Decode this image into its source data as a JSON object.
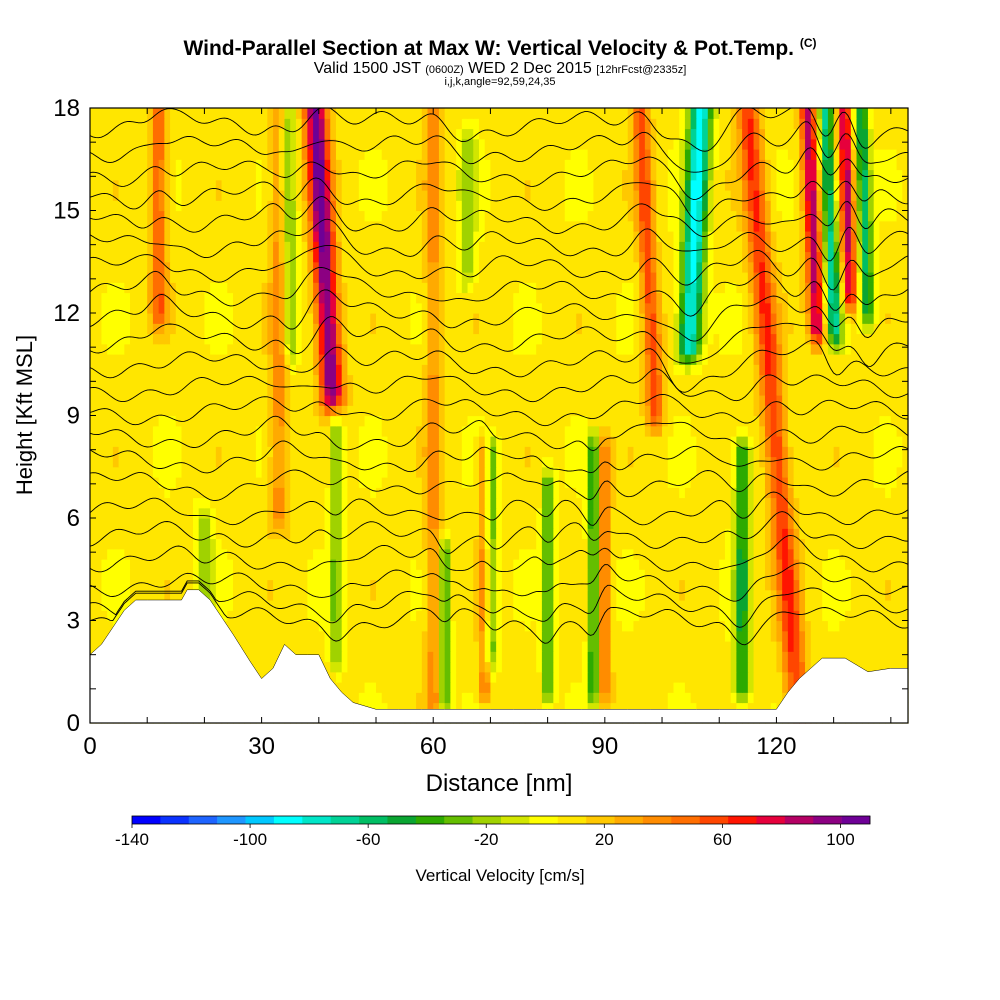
{
  "title": {
    "main": "Wind-Parallel Section at Max W: Vertical Velocity & Pot.Temp.",
    "copyright": "(C)",
    "valid_prefix": "Valid 1500 JST",
    "valid_utc": "(0600Z)",
    "valid_date": "WED 2 Dec 2015",
    "forecast": "[12hrFcst@2335z]",
    "indices": "i,j,k,angle=92,59,24,35"
  },
  "chart_data": {
    "type": "heatmap",
    "title": "Wind-Parallel Section at Max W: Vertical Velocity & Pot.Temp.",
    "xlabel": "Distance [nm]",
    "ylabel": "Height [Kft MSL]",
    "xlim": [
      0,
      143
    ],
    "ylim": [
      0,
      18
    ],
    "x_ticks": [
      "0",
      "30",
      "60",
      "90",
      "120"
    ],
    "y_ticks": [
      "0",
      "3",
      "6",
      "9",
      "12",
      "15",
      "18"
    ],
    "colorbar": {
      "label": "Vertical Velocity [cm/s]",
      "tick_labels": [
        "-140",
        "-100",
        "-60",
        "-20",
        "20",
        "60",
        "100"
      ],
      "range": [
        -140,
        110
      ],
      "colors": [
        "#0000ff",
        "#0a32ff",
        "#1e64ff",
        "#1e96ff",
        "#00c8ff",
        "#00ffff",
        "#00e6c8",
        "#00d296",
        "#00be64",
        "#0aa532",
        "#2daa00",
        "#64be00",
        "#a0d200",
        "#d2e600",
        "#ffff00",
        "#ffe600",
        "#ffc800",
        "#ffaa00",
        "#ff8c00",
        "#ff6e00",
        "#ff4600",
        "#ff1400",
        "#e6003c",
        "#b40064",
        "#8c0082",
        "#6e0096"
      ]
    },
    "terrain_profile": {
      "x": [
        0,
        2,
        4,
        6,
        8,
        10,
        16,
        17,
        19,
        21,
        23,
        25,
        28,
        30,
        32,
        34,
        36,
        38,
        40,
        42,
        44,
        46,
        50,
        54,
        58,
        62,
        66,
        70,
        74,
        78,
        80,
        82,
        86,
        90,
        94,
        98,
        102,
        106,
        110,
        113,
        115,
        118,
        120,
        122,
        124,
        126,
        128,
        132,
        136,
        140,
        143
      ],
      "y": [
        2.0,
        2.3,
        2.8,
        3.3,
        3.6,
        3.6,
        3.6,
        3.9,
        3.9,
        3.6,
        3.1,
        2.6,
        1.8,
        1.3,
        1.6,
        2.3,
        2.0,
        2.0,
        2.0,
        1.3,
        0.9,
        0.6,
        0.4,
        0.4,
        0.4,
        0.4,
        0.4,
        0.4,
        0.4,
        0.4,
        0.4,
        0.4,
        0.4,
        0.4,
        0.4,
        0.4,
        0.4,
        0.4,
        0.4,
        0.4,
        0.4,
        0.4,
        0.4,
        0.9,
        1.3,
        1.6,
        1.9,
        1.9,
        1.5,
        1.6,
        1.6
      ]
    },
    "updraft_bands": [
      {
        "x": 41.5,
        "slope": -0.35,
        "halfwidth": 2.0,
        "amp": 95,
        "ymin": 9.5,
        "ymax": 18
      },
      {
        "x": 127,
        "slope": -0.25,
        "halfwidth": 1.4,
        "amp": 80,
        "ymin": 11.5,
        "ymax": 18
      },
      {
        "x": 133,
        "slope": -0.2,
        "halfwidth": 1.2,
        "amp": 75,
        "ymin": 12.5,
        "ymax": 18
      },
      {
        "x": 118,
        "slope": -0.5,
        "halfwidth": 2.0,
        "amp": 55,
        "ymin": 0.5,
        "ymax": 18
      },
      {
        "x": 98,
        "slope": -0.3,
        "halfwidth": 1.5,
        "amp": 50,
        "ymin": 9,
        "ymax": 18
      },
      {
        "x": 12,
        "slope": 0.0,
        "halfwidth": 1.4,
        "amp": 45,
        "ymin": 12,
        "ymax": 18
      },
      {
        "x": 69,
        "slope": 0.0,
        "halfwidth": 1.0,
        "amp": 40,
        "ymin": 1,
        "ymax": 8
      },
      {
        "x": 90,
        "slope": 0.0,
        "halfwidth": 1.0,
        "amp": 42,
        "ymin": 1,
        "ymax": 8
      },
      {
        "x": 60,
        "slope": 0.0,
        "halfwidth": 1.4,
        "amp": 30,
        "ymin": 0.5,
        "ymax": 18
      },
      {
        "x": 33,
        "slope": 0.0,
        "halfwidth": 1.5,
        "amp": 32,
        "ymin": 6,
        "ymax": 18
      }
    ],
    "downdraft_bands": [
      {
        "x": 105,
        "slope": 0.3,
        "halfwidth": 2.0,
        "amp": -95,
        "ymin": 11,
        "ymax": 18
      },
      {
        "x": 130,
        "slope": -0.25,
        "halfwidth": 1.3,
        "amp": -75,
        "ymin": 11.5,
        "ymax": 18
      },
      {
        "x": 136,
        "slope": -0.2,
        "halfwidth": 1.2,
        "amp": -65,
        "ymin": 12,
        "ymax": 18
      },
      {
        "x": 114,
        "slope": 0.0,
        "halfwidth": 1.4,
        "amp": -55,
        "ymin": 1,
        "ymax": 8
      },
      {
        "x": 88,
        "slope": 0.0,
        "halfwidth": 1.0,
        "amp": -55,
        "ymin": 1,
        "ymax": 8
      },
      {
        "x": 80,
        "slope": 0.0,
        "halfwidth": 1.0,
        "amp": -50,
        "ymin": 1,
        "ymax": 7
      },
      {
        "x": 70,
        "slope": 0.0,
        "halfwidth": 1.2,
        "amp": -45,
        "ymin": 2,
        "ymax": 8
      },
      {
        "x": 62,
        "slope": 0.0,
        "halfwidth": 1.0,
        "amp": -45,
        "ymin": 0.5,
        "ymax": 5
      },
      {
        "x": 43,
        "slope": 0.0,
        "halfwidth": 1.2,
        "amp": -35,
        "ymin": 2,
        "ymax": 9
      },
      {
        "x": 35,
        "slope": -0.1,
        "halfwidth": 1.4,
        "amp": -35,
        "ymin": 11,
        "ymax": 18
      },
      {
        "x": 20,
        "slope": 0.0,
        "halfwidth": 1.5,
        "amp": -30,
        "ymin": 3,
        "ymax": 6
      },
      {
        "x": 66,
        "slope": 0.0,
        "halfwidth": 1.5,
        "amp": -28,
        "ymin": 13,
        "ymax": 17
      }
    ],
    "isentropes": {
      "levels": [
        3.0,
        3.5,
        4.1,
        4.8,
        5.5,
        6.2,
        7.0,
        7.7,
        8.4,
        9.1,
        9.8,
        10.5,
        11.2,
        11.9,
        12.6,
        13.3,
        14.0,
        14.7,
        15.4,
        16.1,
        16.8,
        17.5
      ]
    }
  }
}
